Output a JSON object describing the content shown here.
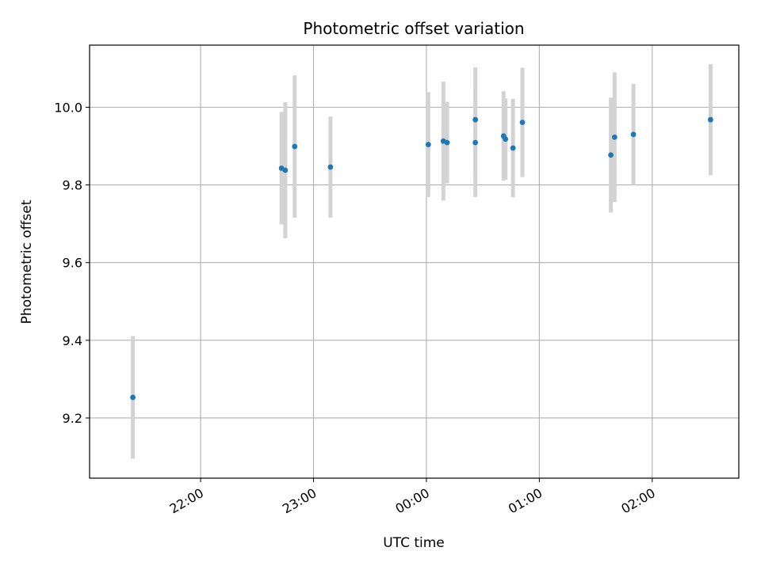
{
  "chart_data": {
    "type": "scatter",
    "title": "Photometric offset variation",
    "xlabel": "UTC time",
    "ylabel": "Photometric offset",
    "grid": true,
    "x_ticks": [
      "22:00",
      "23:00",
      "00:00",
      "01:00",
      "02:00"
    ],
    "y_ticks": [
      "9.2",
      "9.4",
      "9.6",
      "9.8",
      "10.0"
    ],
    "xlim": [
      "21:01",
      "02:46"
    ],
    "ylim": [
      9.045,
      10.16
    ],
    "marker_color": "#1f77b4",
    "errorbar_color": "#d3d3d3",
    "points": [
      {
        "x": "21:24",
        "y": 9.253,
        "yerr": 0.158
      },
      {
        "x": "22:43",
        "y": 9.843,
        "yerr": 0.145
      },
      {
        "x": "22:45",
        "y": 9.838,
        "yerr": 0.175
      },
      {
        "x": "22:50",
        "y": 9.899,
        "yerr": 0.183
      },
      {
        "x": "23:09",
        "y": 9.846,
        "yerr": 0.13
      },
      {
        "x": "00:01",
        "y": 9.904,
        "yerr": 0.135
      },
      {
        "x": "00:09",
        "y": 9.913,
        "yerr": 0.153
      },
      {
        "x": "00:11",
        "y": 9.909,
        "yerr": 0.105
      },
      {
        "x": "00:26",
        "y": 9.909,
        "yerr": 0.14
      },
      {
        "x": "00:26",
        "y": 9.968,
        "yerr": 0.135
      },
      {
        "x": "00:41",
        "y": 9.926,
        "yerr": 0.115
      },
      {
        "x": "00:42",
        "y": 9.918,
        "yerr": 0.105
      },
      {
        "x": "00:46",
        "y": 9.895,
        "yerr": 0.127
      },
      {
        "x": "00:51",
        "y": 9.961,
        "yerr": 0.141
      },
      {
        "x": "01:38",
        "y": 9.877,
        "yerr": 0.148
      },
      {
        "x": "01:40",
        "y": 9.923,
        "yerr": 0.167
      },
      {
        "x": "01:50",
        "y": 9.93,
        "yerr": 0.13
      },
      {
        "x": "02:31",
        "y": 9.968,
        "yerr": 0.143
      }
    ]
  }
}
